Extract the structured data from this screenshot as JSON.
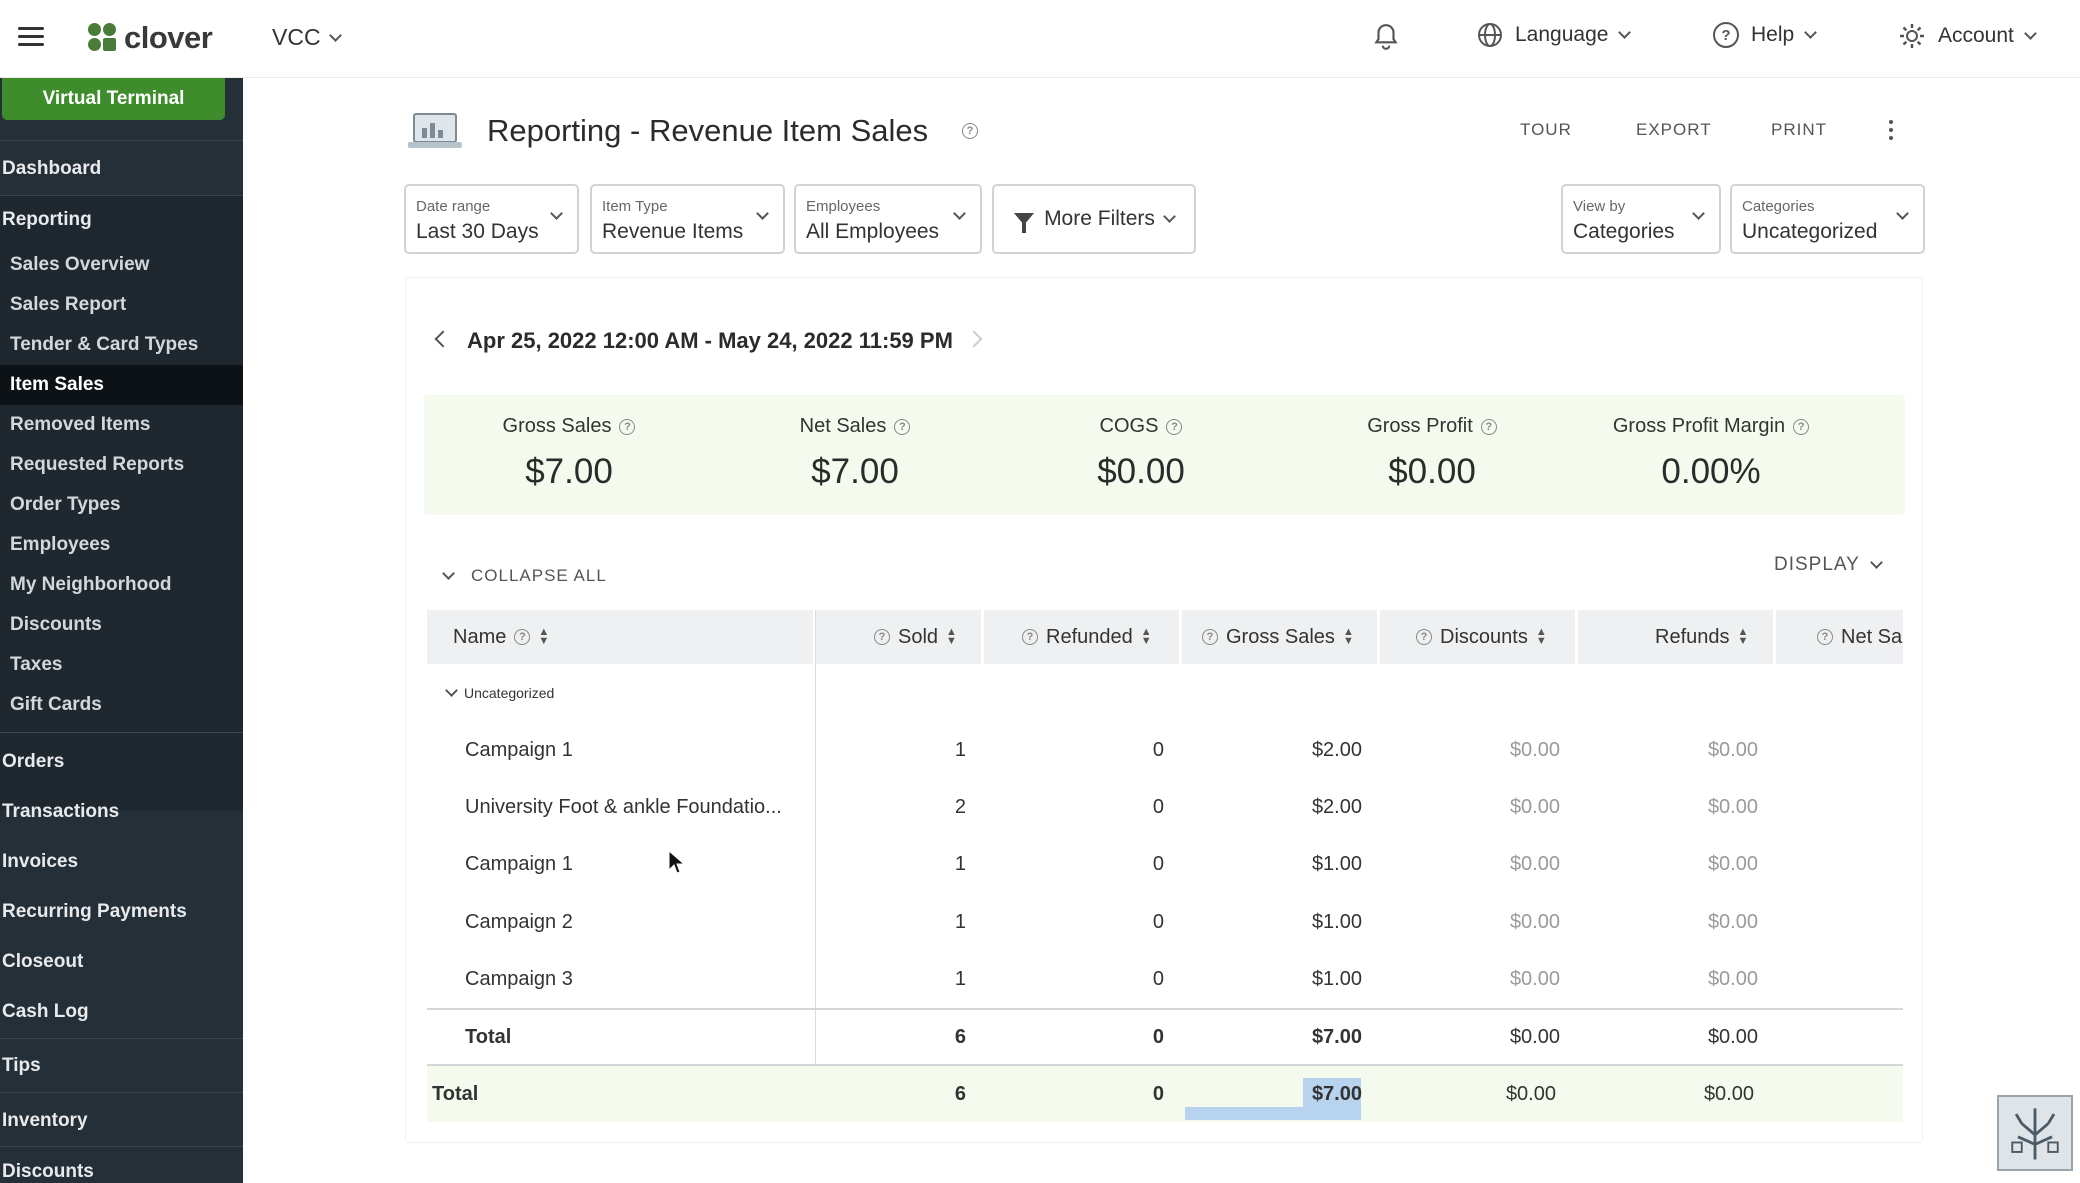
{
  "topbar": {
    "logo_text": "clover",
    "merchant": "VCC",
    "language": "Language",
    "help": "Help",
    "account": "Account"
  },
  "sidebar": {
    "virtual_terminal": "Virtual Terminal",
    "dashboard": "Dashboard",
    "reporting": "Reporting",
    "reporting_items": [
      "Sales Overview",
      "Sales Report",
      "Tender & Card Types",
      "Item Sales",
      "Removed Items",
      "Requested Reports",
      "Order Types",
      "Employees",
      "My Neighborhood",
      "Discounts",
      "Taxes",
      "Gift Cards"
    ],
    "active_item": "Item Sales",
    "sections": [
      "Orders",
      "Transactions",
      "Invoices",
      "Recurring Payments",
      "Closeout",
      "Cash Log",
      "Tips",
      "Inventory",
      "Discounts"
    ]
  },
  "header": {
    "title": "Reporting - Revenue Item Sales",
    "actions": [
      "TOUR",
      "EXPORT",
      "PRINT"
    ]
  },
  "filters": {
    "date_range": {
      "label": "Date range",
      "value": "Last 30 Days"
    },
    "item_type": {
      "label": "Item Type",
      "value": "Revenue Items"
    },
    "employees": {
      "label": "Employees",
      "value": "All Employees"
    },
    "more_filters": "More Filters",
    "view_by": {
      "label": "View by",
      "value": "Categories"
    },
    "categories": {
      "label": "Categories",
      "value": "Uncategorized"
    }
  },
  "period": "Apr 25, 2022 12:00 AM - May 24, 2022 11:59 PM",
  "summary": [
    {
      "label": "Gross Sales",
      "value": "$7.00"
    },
    {
      "label": "Net Sales",
      "value": "$7.00"
    },
    {
      "label": "COGS",
      "value": "$0.00"
    },
    {
      "label": "Gross Profit",
      "value": "$0.00"
    },
    {
      "label": "Gross Profit Margin",
      "value": "0.00%"
    }
  ],
  "table": {
    "collapse_all": "COLLAPSE ALL",
    "display": "DISPLAY",
    "columns": [
      "Name",
      "Sold",
      "Refunded",
      "Gross Sales",
      "Discounts",
      "Refunds",
      "Net Sa"
    ],
    "group": "Uncategorized",
    "rows": [
      {
        "name": "Campaign 1",
        "sold": "1",
        "refunded": "0",
        "gross": "$2.00",
        "discounts": "$0.00",
        "refunds": "$0.00"
      },
      {
        "name": "University Foot & ankle Foundatio...",
        "sold": "2",
        "refunded": "0",
        "gross": "$2.00",
        "discounts": "$0.00",
        "refunds": "$0.00"
      },
      {
        "name": "Campaign 1",
        "sold": "1",
        "refunded": "0",
        "gross": "$1.00",
        "discounts": "$0.00",
        "refunds": "$0.00"
      },
      {
        "name": "Campaign 2",
        "sold": "1",
        "refunded": "0",
        "gross": "$1.00",
        "discounts": "$0.00",
        "refunds": "$0.00"
      },
      {
        "name": "Campaign 3",
        "sold": "1",
        "refunded": "0",
        "gross": "$1.00",
        "discounts": "$0.00",
        "refunds": "$0.00"
      }
    ],
    "group_total": {
      "name": "Total",
      "sold": "6",
      "refunded": "0",
      "gross": "$7.00",
      "discounts": "$0.00",
      "refunds": "$0.00"
    },
    "grand_total": {
      "name": "Total",
      "sold": "6",
      "refunded": "0",
      "gross": "$7.00",
      "discounts": "$0.00",
      "refunds": "$0.00"
    }
  }
}
